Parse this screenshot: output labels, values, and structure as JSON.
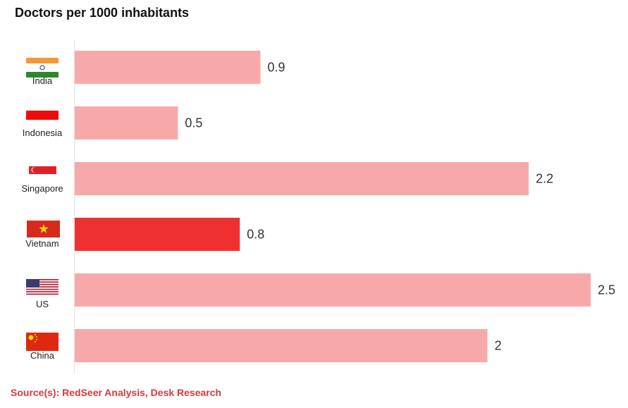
{
  "chart_data": {
    "type": "bar",
    "orientation": "horizontal",
    "title": "Doctors per 1000 inhabitants",
    "categories": [
      "India",
      "Indonesia",
      "Singapore",
      "Vietnam",
      "US",
      "China"
    ],
    "values": [
      0.9,
      0.5,
      2.2,
      0.8,
      2.5,
      2
    ],
    "value_labels": [
      "0.9",
      "0.5",
      "2.2",
      "0.8",
      "2.5",
      "2"
    ],
    "highlight": "Vietnam",
    "colors": {
      "default": "#f7a9a9",
      "highlight": "#ee3030"
    },
    "flag_icons": [
      "india-flag-icon",
      "indonesia-flag-icon",
      "singapore-flag-icon",
      "vietnam-flag-icon",
      "us-flag-icon",
      "china-flag-icon"
    ],
    "xlabel": "",
    "ylabel": "",
    "xlim": [
      0,
      2.5
    ],
    "grid": false,
    "legend": "none"
  },
  "footer": {
    "source": "Source(s): RedSeer Analysis, Desk Research"
  }
}
